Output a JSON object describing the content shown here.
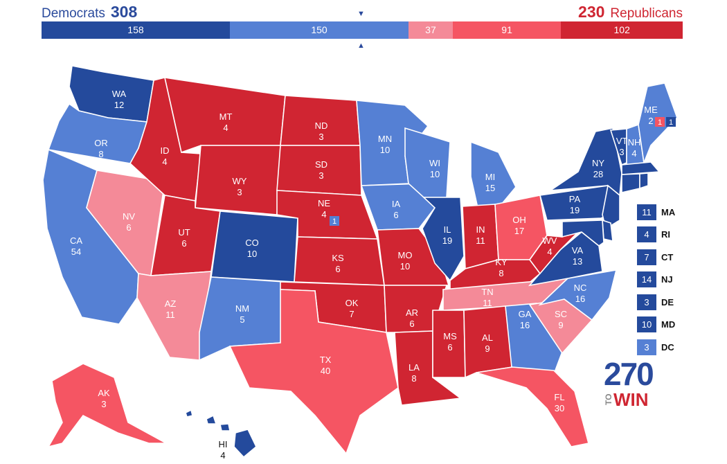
{
  "header": {
    "dem_label": "Democrats",
    "dem_total": "308",
    "rep_total": "230",
    "rep_label": "Republicans"
  },
  "colors": {
    "safe_dem": "#244a9c",
    "lean_dem": "#5580d4",
    "tilt_rep": "#f48a98",
    "lean_rep": "#f55563",
    "safe_rep": "#d02532"
  },
  "bar": [
    {
      "label": "158",
      "value": 158,
      "cat": "safe_dem"
    },
    {
      "label": "150",
      "value": 150,
      "cat": "lean_dem"
    },
    {
      "label": "37",
      "value": 37,
      "cat": "tilt_rep"
    },
    {
      "label": "91",
      "value": 91,
      "cat": "lean_rep"
    },
    {
      "label": "102",
      "value": 102,
      "cat": "safe_rep"
    }
  ],
  "states": [
    {
      "abbr": "WA",
      "ev": "12",
      "cat": "safe_dem"
    },
    {
      "abbr": "OR",
      "ev": "8",
      "cat": "lean_dem"
    },
    {
      "abbr": "CA",
      "ev": "54",
      "cat": "lean_dem"
    },
    {
      "abbr": "NV",
      "ev": "6",
      "cat": "tilt_rep"
    },
    {
      "abbr": "ID",
      "ev": "4",
      "cat": "safe_rep"
    },
    {
      "abbr": "MT",
      "ev": "4",
      "cat": "safe_rep"
    },
    {
      "abbr": "WY",
      "ev": "3",
      "cat": "safe_rep"
    },
    {
      "abbr": "UT",
      "ev": "6",
      "cat": "safe_rep"
    },
    {
      "abbr": "AZ",
      "ev": "11",
      "cat": "tilt_rep"
    },
    {
      "abbr": "CO",
      "ev": "10",
      "cat": "safe_dem"
    },
    {
      "abbr": "NM",
      "ev": "5",
      "cat": "lean_dem"
    },
    {
      "abbr": "ND",
      "ev": "3",
      "cat": "safe_rep"
    },
    {
      "abbr": "SD",
      "ev": "3",
      "cat": "safe_rep"
    },
    {
      "abbr": "NE",
      "ev": "4",
      "cat": "safe_rep"
    },
    {
      "abbr": "KS",
      "ev": "6",
      "cat": "safe_rep"
    },
    {
      "abbr": "OK",
      "ev": "7",
      "cat": "safe_rep"
    },
    {
      "abbr": "TX",
      "ev": "40",
      "cat": "lean_rep"
    },
    {
      "abbr": "MN",
      "ev": "10",
      "cat": "lean_dem"
    },
    {
      "abbr": "IA",
      "ev": "6",
      "cat": "lean_dem"
    },
    {
      "abbr": "MO",
      "ev": "10",
      "cat": "safe_rep"
    },
    {
      "abbr": "AR",
      "ev": "6",
      "cat": "safe_rep"
    },
    {
      "abbr": "LA",
      "ev": "8",
      "cat": "safe_rep"
    },
    {
      "abbr": "WI",
      "ev": "10",
      "cat": "lean_dem"
    },
    {
      "abbr": "IL",
      "ev": "19",
      "cat": "safe_dem"
    },
    {
      "abbr": "MI",
      "ev": "15",
      "cat": "lean_dem"
    },
    {
      "abbr": "IN",
      "ev": "11",
      "cat": "safe_rep"
    },
    {
      "abbr": "OH",
      "ev": "17",
      "cat": "lean_rep"
    },
    {
      "abbr": "KY",
      "ev": "8",
      "cat": "safe_rep"
    },
    {
      "abbr": "TN",
      "ev": "11",
      "cat": "tilt_rep"
    },
    {
      "abbr": "MS",
      "ev": "6",
      "cat": "safe_rep"
    },
    {
      "abbr": "AL",
      "ev": "9",
      "cat": "safe_rep"
    },
    {
      "abbr": "GA",
      "ev": "16",
      "cat": "lean_dem"
    },
    {
      "abbr": "FL",
      "ev": "30",
      "cat": "lean_rep"
    },
    {
      "abbr": "SC",
      "ev": "9",
      "cat": "tilt_rep"
    },
    {
      "abbr": "NC",
      "ev": "16",
      "cat": "lean_dem"
    },
    {
      "abbr": "VA",
      "ev": "13",
      "cat": "safe_dem"
    },
    {
      "abbr": "WV",
      "ev": "4",
      "cat": "safe_rep"
    },
    {
      "abbr": "PA",
      "ev": "19",
      "cat": "safe_dem"
    },
    {
      "abbr": "NY",
      "ev": "28",
      "cat": "safe_dem"
    },
    {
      "abbr": "VT",
      "ev": "3",
      "cat": "safe_dem"
    },
    {
      "abbr": "NH",
      "ev": "4",
      "cat": "lean_dem"
    },
    {
      "abbr": "ME",
      "ev": "2",
      "cat": "lean_dem"
    },
    {
      "abbr": "AK",
      "ev": "3",
      "cat": "lean_rep"
    },
    {
      "abbr": "HI",
      "ev": "4",
      "cat": "safe_dem"
    }
  ],
  "districts": [
    {
      "state": "NE",
      "ev": "1",
      "cat": "lean_dem"
    },
    {
      "state": "ME",
      "ev": "1",
      "cat": "lean_rep"
    },
    {
      "state": "ME",
      "ev": "1",
      "cat": "safe_dem"
    }
  ],
  "small_states": [
    {
      "abbr": "MA",
      "ev": "11",
      "cat": "safe_dem"
    },
    {
      "abbr": "RI",
      "ev": "4",
      "cat": "safe_dem"
    },
    {
      "abbr": "CT",
      "ev": "7",
      "cat": "safe_dem"
    },
    {
      "abbr": "NJ",
      "ev": "14",
      "cat": "safe_dem"
    },
    {
      "abbr": "DE",
      "ev": "3",
      "cat": "safe_dem"
    },
    {
      "abbr": "MD",
      "ev": "10",
      "cat": "safe_dem"
    },
    {
      "abbr": "DC",
      "ev": "3",
      "cat": "lean_dem"
    }
  ],
  "logo": {
    "num": "270",
    "to": "TO",
    "win": "WIN"
  }
}
